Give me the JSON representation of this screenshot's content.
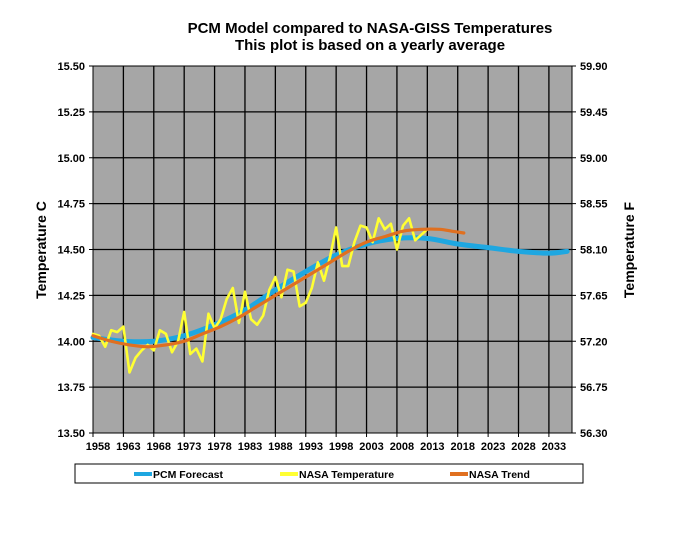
{
  "chart_data": {
    "type": "line",
    "title": "PCM Model compared to NASA-GISS Temperatures",
    "subtitle": "This plot is based on a yearly average",
    "ylabel": "Temperature C",
    "y2label": "Temperature F",
    "ylim": [
      13.5,
      15.5
    ],
    "y2lim": [
      56.3,
      59.9
    ],
    "yticks": [
      "13.50",
      "13.75",
      "14.00",
      "14.25",
      "14.50",
      "14.75",
      "15.00",
      "15.25",
      "15.50"
    ],
    "y2ticks": [
      "56.30",
      "56.75",
      "57.20",
      "57.65",
      "58.10",
      "58.55",
      "59.00",
      "59.45",
      "59.90"
    ],
    "xticks": [
      "1958",
      "1963",
      "1968",
      "1973",
      "1978",
      "1983",
      "1988",
      "1993",
      "1998",
      "2003",
      "2008",
      "2013",
      "2018",
      "2023",
      "2028",
      "2033"
    ],
    "xlim": [
      1958,
      2036.8
    ],
    "grid": true,
    "plot_background": "#a6a6a6",
    "legend_position": "bottom",
    "series": [
      {
        "name": "PCM Forecast",
        "color": "#1ea7e1",
        "x": [
          1958,
          1963,
          1968,
          1973,
          1978,
          1983,
          1988,
          1993,
          1998,
          2003,
          2008,
          2013,
          2018,
          2023,
          2028,
          2033,
          2036
        ],
        "values": [
          14.02,
          14.0,
          14.0,
          14.03,
          14.09,
          14.17,
          14.28,
          14.38,
          14.47,
          14.53,
          14.56,
          14.56,
          14.53,
          14.51,
          14.49,
          14.48,
          14.49
        ]
      },
      {
        "name": "NASA Temperature",
        "color": "#ffff33",
        "x": [
          1958,
          1959,
          1960,
          1961,
          1962,
          1963,
          1964,
          1965,
          1966,
          1967,
          1968,
          1969,
          1970,
          1971,
          1972,
          1973,
          1974,
          1975,
          1976,
          1977,
          1978,
          1979,
          1980,
          1981,
          1982,
          1983,
          1984,
          1985,
          1986,
          1987,
          1988,
          1989,
          1990,
          1991,
          1992,
          1993,
          1994,
          1995,
          1996,
          1997,
          1998,
          1999,
          2000,
          2001,
          2002,
          2003,
          2004,
          2005,
          2006,
          2007,
          2008,
          2009,
          2010,
          2011,
          2012,
          2013
        ],
        "values": [
          14.04,
          14.03,
          13.97,
          14.06,
          14.05,
          14.08,
          13.83,
          13.91,
          13.95,
          13.98,
          13.95,
          14.06,
          14.04,
          13.94,
          14.0,
          14.16,
          13.93,
          13.96,
          13.89,
          14.15,
          14.07,
          14.12,
          14.23,
          14.29,
          14.1,
          14.27,
          14.12,
          14.09,
          14.14,
          14.28,
          14.35,
          14.24,
          14.39,
          14.38,
          14.19,
          14.21,
          14.29,
          14.43,
          14.33,
          14.46,
          14.62,
          14.41,
          14.41,
          14.54,
          14.63,
          14.62,
          14.54,
          14.67,
          14.61,
          14.64,
          14.5,
          14.63,
          14.67,
          14.55,
          14.58,
          14.61
        ]
      },
      {
        "name": "NASA Trend",
        "color": "#e07020",
        "x": [
          1958,
          1961,
          1964,
          1967,
          1970,
          1973,
          1976,
          1979,
          1982,
          1985,
          1988,
          1991,
          1994,
          1997,
          2000,
          2003,
          2006,
          2009,
          2012,
          2015,
          2017,
          2019
        ],
        "values": [
          14.03,
          14.0,
          13.98,
          13.97,
          13.98,
          14.0,
          14.04,
          14.08,
          14.13,
          14.19,
          14.25,
          14.31,
          14.37,
          14.43,
          14.49,
          14.54,
          14.57,
          14.6,
          14.61,
          14.61,
          14.6,
          14.59
        ]
      }
    ]
  }
}
